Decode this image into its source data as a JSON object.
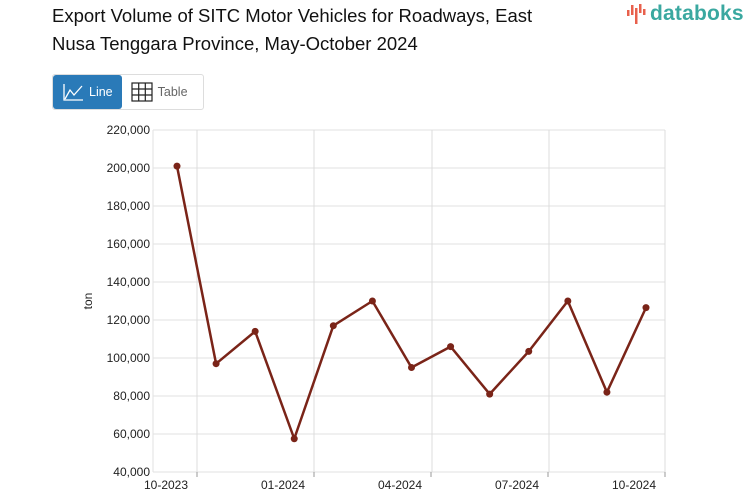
{
  "header": {
    "title": "Export Volume of SITC Motor Vehicles for Roadways, East Nusa Tenggara Province, May-October 2024",
    "logo_text": "databoks"
  },
  "view_toggle": {
    "line_label": "Line",
    "table_label": "Table",
    "active": "Line"
  },
  "colors": {
    "line": "#7a2418",
    "active_button": "#2a7ab8",
    "logo": "#3aa8a0"
  },
  "chart_data": {
    "type": "line",
    "title": "Export Volume of SITC Motor Vehicles for Roadways, East Nusa Tenggara Province, May-October 2024",
    "xlabel": "",
    "ylabel": "ton",
    "x": [
      "10-2023",
      "11-2023",
      "12-2023",
      "01-2024",
      "02-2024",
      "03-2024",
      "04-2024",
      "05-2024",
      "06-2024",
      "07-2024",
      "08-2024",
      "09-2024",
      "10-2024"
    ],
    "series": [
      {
        "name": "Export Volume",
        "values": [
          201000,
          97000,
          114000,
          57500,
          117000,
          130000,
          95000,
          106000,
          81000,
          103500,
          130000,
          82000,
          126500
        ]
      }
    ],
    "x_tick_labels": [
      "10-2023",
      "01-2024",
      "04-2024",
      "07-2024",
      "10-2024"
    ],
    "y_ticks": [
      "40,000",
      "60,000",
      "80,000",
      "100,000",
      "120,000",
      "140,000",
      "160,000",
      "180,000",
      "200,000",
      "220,000"
    ],
    "ylim": [
      40000,
      220000
    ],
    "grid": true
  }
}
